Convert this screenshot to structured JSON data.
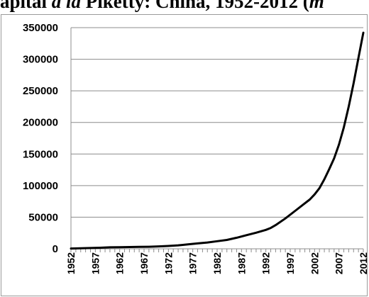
{
  "chart_data": {
    "type": "line",
    "title_parts": [
      {
        "text": "apital ",
        "italic": false
      },
      {
        "text": "à la",
        "italic": true
      },
      {
        "text": " Piketty: China, 1952-2012 (",
        "italic": false
      },
      {
        "text": "m",
        "italic": true
      }
    ],
    "xlabel": "",
    "ylabel": "",
    "ylim": [
      0,
      350000
    ],
    "yticks": [
      "350000",
      "300000",
      "250000",
      "200000",
      "150000",
      "100000",
      "50000",
      "0"
    ],
    "xticks": [
      "1952",
      "1957",
      "1962",
      "1967",
      "1972",
      "1977",
      "1982",
      "1987",
      "1992",
      "1997",
      "2002",
      "2007",
      "2012"
    ],
    "grid": "horizontal",
    "legend": "none",
    "line_color": "#000000",
    "series": [
      {
        "x": [
          1952,
          1954,
          1956,
          1958,
          1960,
          1962,
          1964,
          1966,
          1968,
          1970,
          1972,
          1974,
          1976,
          1978,
          1980,
          1982,
          1984,
          1986,
          1988,
          1990,
          1992,
          1993,
          1994,
          1996,
          1998,
          2000,
          2001,
          2002,
          2003,
          2004,
          2005,
          2006,
          2007,
          2008,
          2009,
          2010,
          2011,
          2012
        ],
        "values": [
          500,
          800,
          1200,
          1700,
          2300,
          2600,
          2800,
          3000,
          3300,
          3800,
          4500,
          5500,
          7000,
          8500,
          10000,
          12000,
          14000,
          17500,
          21500,
          25500,
          30000,
          33000,
          37500,
          48000,
          60000,
          72000,
          78000,
          86000,
          96000,
          110000,
          126000,
          143000,
          165000,
          192000,
          225000,
          262000,
          302000,
          342000
        ]
      }
    ]
  }
}
